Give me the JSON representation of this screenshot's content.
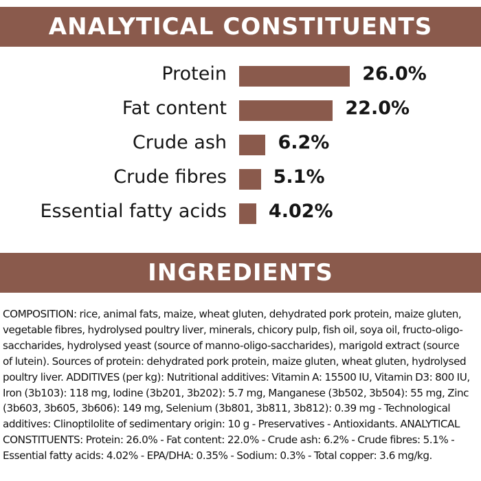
{
  "analytical": {
    "title": "ANALYTICAL CONSTITUENTS"
  },
  "chart_data": {
    "type": "bar",
    "orientation": "horizontal",
    "title": "ANALYTICAL CONSTITUENTS",
    "categories": [
      "Protein",
      "Fat content",
      "Crude ash",
      "Crude fibres",
      "Essential fatty acids"
    ],
    "values": [
      26.0,
      22.0,
      6.2,
      5.1,
      4.02
    ],
    "value_labels": [
      "26.0%",
      "22.0%",
      "6.2%",
      "5.1%",
      "4.02%"
    ],
    "color": "#8a5a4c"
  },
  "ingredients": {
    "title": "INGREDIENTS",
    "lines": [
      "COMPOSITION: rice, animal fats, maize, wheat gluten, dehydrated pork protein, maize gluten,",
      "vegetable fibres, hydrolysed poultry liver, minerals, chicory pulp, fish oil, soya oil, fructo-oligo-",
      "saccharides, hydrolysed yeast (source of manno-oligo-saccharides), marigold extract (source",
      "of lutein). Sources of protein: dehydrated pork protein, maize gluten, wheat gluten, hydrolysed",
      "poultry liver. ADDITIVES (per kg): Nutritional additives: Vitamin A: 15500 IU, Vitamin D3: 800 IU,",
      "Iron (3b103): 118 mg, Iodine (3b201, 3b202): 5.7 mg, Manganese (3b502, 3b504): 55 mg, Zinc",
      "(3b603, 3b605, 3b606): 149 mg, Selenium (3b801, 3b811, 3b812): 0.39 mg - Technological",
      "additives: Clinoptilolite of sedimentary origin: 10 g - Preservatives - Antioxidants. ANALYTICAL",
      "CONSTITUENTS: Protein: 26.0% - Fat content: 22.0% - Crude ash: 6.2% - Crude fibres: 5.1% -",
      "Essential fatty acids: 4.02% - EPA/DHA: 0.35% - Sodium: 0.3% - Total copper: 3.6 mg/kg."
    ]
  }
}
